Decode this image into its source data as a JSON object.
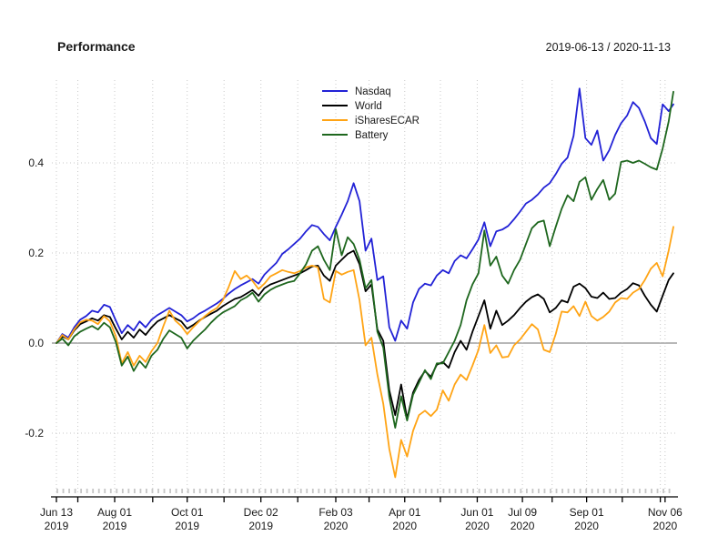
{
  "chart_data": {
    "type": "line",
    "title": "Performance",
    "date_range": "2019-06-13 / 2020-11-13",
    "x_start": "2019-06-13",
    "x_end": "2020-11-13",
    "total_days": 519,
    "step_days": 5,
    "ylim": [
      -0.335,
      0.59
    ],
    "grid": "dotted",
    "zero_line": true,
    "legend_position": "top-center",
    "y_ticks": [
      {
        "v": 0.4,
        "label": "0.4"
      },
      {
        "v": 0.2,
        "label": "0.2"
      },
      {
        "v": 0.0,
        "label": "0.0"
      },
      {
        "v": -0.2,
        "label": "-0.2"
      }
    ],
    "x_ticks": [
      {
        "t": 0,
        "label": [
          "Jun 13",
          "2019"
        ]
      },
      {
        "t": 18
      },
      {
        "t": 49,
        "label": [
          "Aug 01",
          "2019"
        ]
      },
      {
        "t": 81
      },
      {
        "t": 110,
        "label": [
          "Oct 01",
          "2019"
        ]
      },
      {
        "t": 141
      },
      {
        "t": 172,
        "label": [
          "Dec 02",
          "2019"
        ]
      },
      {
        "t": 203
      },
      {
        "t": 235,
        "label": [
          "Feb 03",
          "2020"
        ]
      },
      {
        "t": 263
      },
      {
        "t": 293,
        "label": [
          "Apr 01",
          "2020"
        ]
      },
      {
        "t": 323
      },
      {
        "t": 354,
        "label": [
          "Jun 01",
          "2020"
        ]
      },
      {
        "t": 392,
        "label": [
          "Jul 09",
          "2020"
        ]
      },
      {
        "t": 417
      },
      {
        "t": 446,
        "label": [
          "Sep 01",
          "2020"
        ]
      },
      {
        "t": 476
      },
      {
        "t": 508
      },
      {
        "t": 512,
        "label": [
          "Nov 06",
          "2020"
        ]
      }
    ],
    "series": [
      {
        "name": "Nasdaq",
        "color": "#2222d6",
        "values": [
          0.0,
          0.02,
          0.012,
          0.035,
          0.052,
          0.06,
          0.072,
          0.068,
          0.085,
          0.08,
          0.05,
          0.022,
          0.04,
          0.028,
          0.048,
          0.035,
          0.052,
          0.062,
          0.07,
          0.078,
          0.07,
          0.062,
          0.048,
          0.055,
          0.065,
          0.072,
          0.08,
          0.088,
          0.098,
          0.11,
          0.12,
          0.128,
          0.135,
          0.142,
          0.132,
          0.152,
          0.165,
          0.178,
          0.198,
          0.208,
          0.22,
          0.232,
          0.248,
          0.262,
          0.258,
          0.242,
          0.228,
          0.258,
          0.285,
          0.315,
          0.355,
          0.315,
          0.205,
          0.232,
          0.14,
          0.148,
          0.035,
          0.005,
          0.05,
          0.032,
          0.09,
          0.12,
          0.132,
          0.128,
          0.15,
          0.162,
          0.155,
          0.182,
          0.195,
          0.188,
          0.208,
          0.23,
          0.268,
          0.215,
          0.248,
          0.252,
          0.26,
          0.275,
          0.292,
          0.31,
          0.318,
          0.33,
          0.345,
          0.355,
          0.375,
          0.398,
          0.412,
          0.46,
          0.565,
          0.455,
          0.44,
          0.472,
          0.405,
          0.428,
          0.462,
          0.488,
          0.505,
          0.535,
          0.522,
          0.492,
          0.455,
          0.442,
          0.53,
          0.515,
          0.53
        ]
      },
      {
        "name": "World",
        "color": "#000000",
        "values": [
          0.0,
          0.015,
          0.008,
          0.028,
          0.042,
          0.048,
          0.055,
          0.05,
          0.062,
          0.058,
          0.032,
          0.008,
          0.025,
          0.012,
          0.03,
          0.018,
          0.035,
          0.048,
          0.055,
          0.062,
          0.055,
          0.048,
          0.032,
          0.04,
          0.05,
          0.058,
          0.065,
          0.072,
          0.082,
          0.09,
          0.098,
          0.102,
          0.11,
          0.118,
          0.105,
          0.122,
          0.13,
          0.135,
          0.14,
          0.145,
          0.15,
          0.155,
          0.162,
          0.17,
          0.172,
          0.15,
          0.138,
          0.172,
          0.185,
          0.198,
          0.205,
          0.175,
          0.115,
          0.13,
          0.03,
          0.005,
          -0.105,
          -0.16,
          -0.092,
          -0.168,
          -0.11,
          -0.082,
          -0.062,
          -0.075,
          -0.048,
          -0.042,
          -0.055,
          -0.02,
          0.005,
          -0.015,
          0.025,
          0.06,
          0.095,
          0.032,
          0.072,
          0.04,
          0.05,
          0.062,
          0.078,
          0.092,
          0.102,
          0.108,
          0.098,
          0.068,
          0.078,
          0.095,
          0.09,
          0.125,
          0.132,
          0.122,
          0.103,
          0.1,
          0.112,
          0.098,
          0.1,
          0.112,
          0.12,
          0.133,
          0.128,
          0.105,
          0.085,
          0.07,
          0.105,
          0.14,
          0.155
        ]
      },
      {
        "name": "iSharesECAR",
        "color": "#ffa415",
        "values": [
          0.0,
          0.018,
          0.008,
          0.03,
          0.046,
          0.052,
          0.05,
          0.042,
          0.06,
          0.048,
          0.015,
          -0.045,
          -0.02,
          -0.05,
          -0.028,
          -0.042,
          -0.018,
          0.0,
          0.038,
          0.072,
          0.05,
          0.038,
          0.02,
          0.035,
          0.048,
          0.06,
          0.07,
          0.078,
          0.095,
          0.125,
          0.16,
          0.142,
          0.15,
          0.138,
          0.12,
          0.132,
          0.148,
          0.155,
          0.162,
          0.158,
          0.155,
          0.16,
          0.168,
          0.172,
          0.168,
          0.098,
          0.09,
          0.16,
          0.152,
          0.158,
          0.162,
          0.095,
          -0.005,
          0.012,
          -0.07,
          -0.135,
          -0.235,
          -0.298,
          -0.215,
          -0.252,
          -0.195,
          -0.16,
          -0.15,
          -0.162,
          -0.148,
          -0.105,
          -0.128,
          -0.092,
          -0.07,
          -0.082,
          -0.05,
          -0.015,
          0.04,
          -0.022,
          -0.005,
          -0.032,
          -0.03,
          -0.005,
          0.008,
          0.025,
          0.042,
          0.03,
          -0.015,
          -0.02,
          0.02,
          0.07,
          0.068,
          0.082,
          0.06,
          0.092,
          0.06,
          0.05,
          0.058,
          0.07,
          0.09,
          0.1,
          0.098,
          0.112,
          0.12,
          0.14,
          0.165,
          0.178,
          0.148,
          0.205,
          0.258
        ]
      },
      {
        "name": "Battery",
        "color": "#1e671e",
        "values": [
          0.0,
          0.01,
          -0.005,
          0.015,
          0.025,
          0.032,
          0.038,
          0.03,
          0.045,
          0.035,
          0.002,
          -0.05,
          -0.03,
          -0.062,
          -0.04,
          -0.055,
          -0.028,
          -0.015,
          0.01,
          0.028,
          0.02,
          0.012,
          -0.012,
          0.005,
          0.018,
          0.03,
          0.045,
          0.058,
          0.068,
          0.075,
          0.082,
          0.095,
          0.102,
          0.112,
          0.092,
          0.108,
          0.118,
          0.125,
          0.13,
          0.135,
          0.138,
          0.155,
          0.175,
          0.205,
          0.215,
          0.185,
          0.162,
          0.253,
          0.195,
          0.235,
          0.22,
          0.185,
          0.122,
          0.14,
          0.025,
          -0.01,
          -0.12,
          -0.188,
          -0.118,
          -0.172,
          -0.115,
          -0.088,
          -0.06,
          -0.08,
          -0.045,
          -0.045,
          -0.02,
          0.005,
          0.04,
          0.095,
          0.13,
          0.155,
          0.25,
          0.172,
          0.192,
          0.15,
          0.132,
          0.162,
          0.185,
          0.22,
          0.255,
          0.268,
          0.272,
          0.215,
          0.258,
          0.298,
          0.328,
          0.315,
          0.358,
          0.368,
          0.318,
          0.342,
          0.362,
          0.318,
          0.332,
          0.402,
          0.405,
          0.4,
          0.405,
          0.398,
          0.39,
          0.385,
          0.432,
          0.492,
          0.558
        ]
      }
    ],
    "colors": {
      "grid": "#c9c9c9",
      "zero_line": "#8c8c8c",
      "axis": "#000000",
      "minor_tick": "#c6c6c6",
      "text": "#1a1a1a"
    }
  }
}
